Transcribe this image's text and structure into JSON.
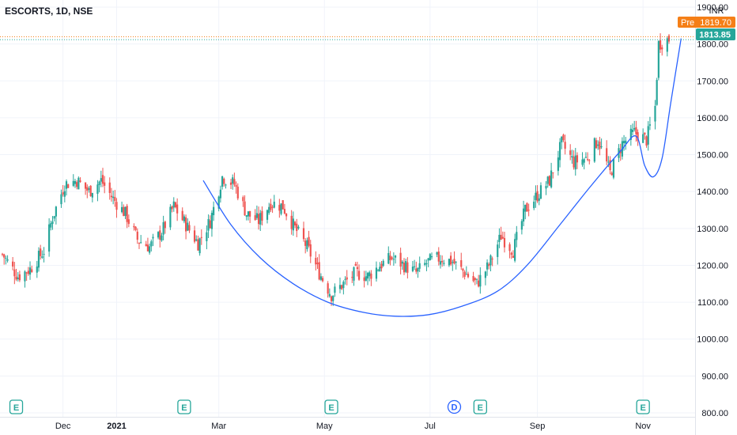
{
  "header": {
    "title": "ESCORTS, 1D, NSE"
  },
  "price_axis": {
    "unit": "INR"
  },
  "badges": {
    "pre": {
      "label": "Pre",
      "value": "1819.70",
      "color": "#f57f17"
    },
    "last": {
      "value": "1813.85",
      "color": "#26a69a"
    }
  },
  "events": [
    {
      "kind": "earnings",
      "label": "E",
      "date": "2020-11-04"
    },
    {
      "kind": "earnings",
      "label": "E",
      "date": "2021-02-09"
    },
    {
      "kind": "earnings",
      "label": "E",
      "date": "2021-05-05"
    },
    {
      "kind": "dividend",
      "label": "D",
      "date": "2021-07-15"
    },
    {
      "kind": "earnings",
      "label": "E",
      "date": "2021-07-30"
    },
    {
      "kind": "earnings",
      "label": "E",
      "date": "2021-11-01"
    }
  ],
  "chart_data": {
    "type": "candlestick",
    "symbol": "ESCORTS",
    "interval": "1D",
    "exchange": "NSE",
    "ylim": [
      800,
      1900
    ],
    "y_ticks": [
      800,
      900,
      1000,
      1100,
      1200,
      1300,
      1400,
      1500,
      1600,
      1700,
      1800,
      1900
    ],
    "y_tick_labels": [
      "800.00",
      "900.00",
      "1000.00",
      "1100.00",
      "1200.00",
      "1300.00",
      "1400.00",
      "1500.00",
      "1600.00",
      "1700.00",
      "1800.00",
      "1900.00"
    ],
    "x_ticks": [
      {
        "label": "Dec",
        "date": "2020-12-01",
        "bold": false
      },
      {
        "label": "2021",
        "date": "2021-01-01",
        "bold": true
      },
      {
        "label": "Mar",
        "date": "2021-03-01",
        "bold": false
      },
      {
        "label": "May",
        "date": "2021-05-01",
        "bold": false
      },
      {
        "label": "Jul",
        "date": "2021-07-01",
        "bold": false
      },
      {
        "label": "Sep",
        "date": "2021-09-01",
        "bold": false
      },
      {
        "label": "Nov",
        "date": "2021-11-01",
        "bold": false
      }
    ],
    "close_path": [
      [
        "2020-10-27",
        1230
      ],
      [
        "2020-11-05",
        1170
      ],
      [
        "2020-11-12",
        1190
      ],
      [
        "2020-11-20",
        1240
      ],
      [
        "2020-11-25",
        1330
      ],
      [
        "2020-12-02",
        1420
      ],
      [
        "2020-12-09",
        1430
      ],
      [
        "2020-12-16",
        1400
      ],
      [
        "2020-12-23",
        1430
      ],
      [
        "2020-12-30",
        1380
      ],
      [
        "2021-01-06",
        1340
      ],
      [
        "2021-01-13",
        1270
      ],
      [
        "2021-01-20",
        1250
      ],
      [
        "2021-01-27",
        1290
      ],
      [
        "2021-02-03",
        1360
      ],
      [
        "2021-02-10",
        1310
      ],
      [
        "2021-02-17",
        1260
      ],
      [
        "2021-02-24",
        1320
      ],
      [
        "2021-03-03",
        1440
      ],
      [
        "2021-03-10",
        1420
      ],
      [
        "2021-03-17",
        1340
      ],
      [
        "2021-03-24",
        1320
      ],
      [
        "2021-03-31",
        1370
      ],
      [
        "2021-04-07",
        1360
      ],
      [
        "2021-04-14",
        1300
      ],
      [
        "2021-04-21",
        1250
      ],
      [
        "2021-04-28",
        1180
      ],
      [
        "2021-05-05",
        1120
      ],
      [
        "2021-05-12",
        1150
      ],
      [
        "2021-05-19",
        1180
      ],
      [
        "2021-05-26",
        1170
      ],
      [
        "2021-06-02",
        1200
      ],
      [
        "2021-06-09",
        1220
      ],
      [
        "2021-06-16",
        1200
      ],
      [
        "2021-06-23",
        1180
      ],
      [
        "2021-06-30",
        1210
      ],
      [
        "2021-07-07",
        1220
      ],
      [
        "2021-07-14",
        1210
      ],
      [
        "2021-07-21",
        1180
      ],
      [
        "2021-07-28",
        1150
      ],
      [
        "2021-08-04",
        1200
      ],
      [
        "2021-08-11",
        1280
      ],
      [
        "2021-08-18",
        1240
      ],
      [
        "2021-08-25",
        1350
      ],
      [
        "2021-09-01",
        1390
      ],
      [
        "2021-09-08",
        1430
      ],
      [
        "2021-09-15",
        1530
      ],
      [
        "2021-09-22",
        1480
      ],
      [
        "2021-09-29",
        1490
      ],
      [
        "2021-10-06",
        1540
      ],
      [
        "2021-10-13",
        1450
      ],
      [
        "2021-10-20",
        1530
      ],
      [
        "2021-10-27",
        1560
      ],
      [
        "2021-11-03",
        1540
      ],
      [
        "2021-11-08",
        1630
      ],
      [
        "2021-11-10",
        1800
      ],
      [
        "2021-11-16",
        1814
      ]
    ],
    "cup_curve": [
      [
        "2021-02-20",
        1430
      ],
      [
        "2021-03-08",
        1310
      ],
      [
        "2021-03-25",
        1220
      ],
      [
        "2021-04-13",
        1150
      ],
      [
        "2021-05-03",
        1100
      ],
      [
        "2021-05-24",
        1072
      ],
      [
        "2021-06-11",
        1062
      ],
      [
        "2021-06-30",
        1066
      ],
      [
        "2021-07-20",
        1090
      ],
      [
        "2021-08-09",
        1130
      ],
      [
        "2021-08-26",
        1200
      ],
      [
        "2021-09-14",
        1310
      ],
      [
        "2021-10-01",
        1410
      ],
      [
        "2021-10-19",
        1510
      ],
      [
        "2021-10-28",
        1550
      ],
      [
        "2021-11-02",
        1470
      ],
      [
        "2021-11-07",
        1440
      ],
      [
        "2021-11-12",
        1490
      ],
      [
        "2021-11-17",
        1640
      ],
      [
        "2021-11-23",
        1815
      ]
    ],
    "grid": true,
    "colors": {
      "up": "#26a69a",
      "down": "#ef5350",
      "curve": "#2962ff",
      "grid": "#f0f3fa"
    }
  }
}
